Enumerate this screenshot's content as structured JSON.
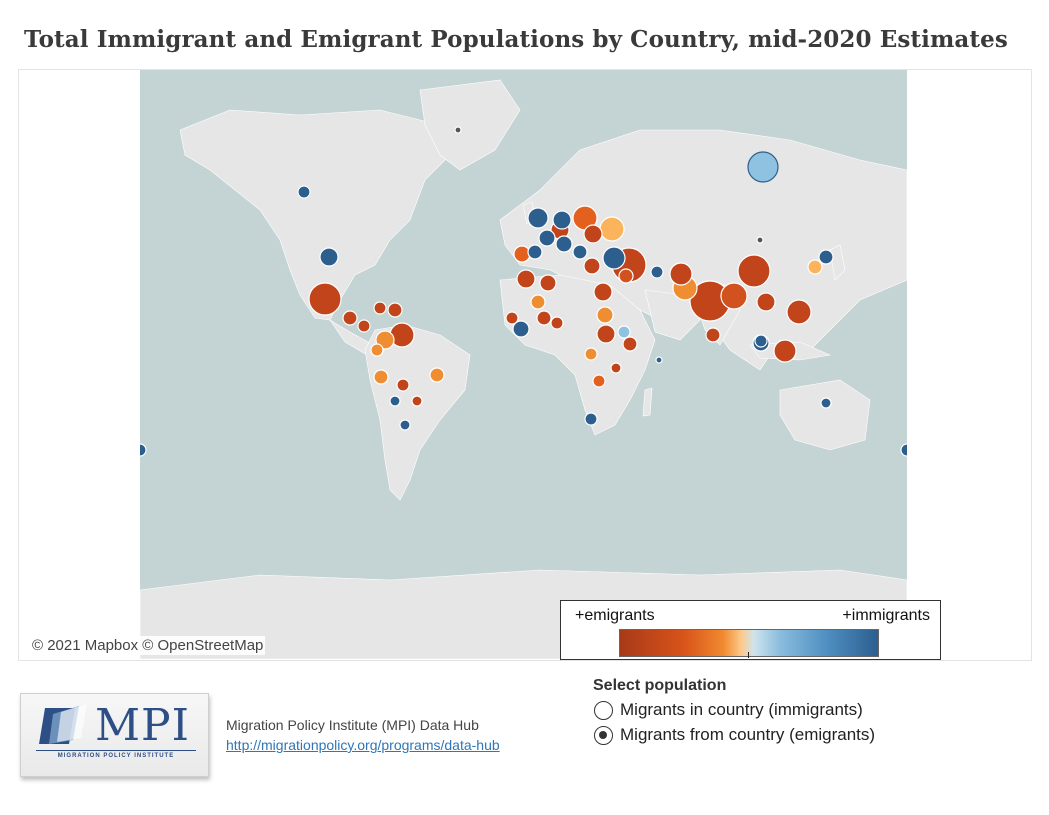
{
  "title": "Total Immigrant and Emigrant Populations by Country, mid-2020 Estimates",
  "map": {
    "attribution": "© 2021 Mapbox © OpenStreetMap",
    "colors": {
      "ocean": "#c4d3d3",
      "land": "#e8e8e8",
      "emigrants": "#c2441a",
      "immigrants": "#2c5f8e"
    }
  },
  "legend": {
    "left_label": "+emigrants",
    "right_label": "+immigrants"
  },
  "source": {
    "name": "Migration Policy Institute (MPI) Data Hub",
    "url": "http://migrationpolicy.org/programs/data-hub"
  },
  "logo": {
    "text": "MPI",
    "subtitle": "MIGRATION POLICY INSTITUTE"
  },
  "selector": {
    "title": "Select population",
    "options": [
      {
        "label": "Migrants in country (immigrants)",
        "selected": false
      },
      {
        "label": "Migrants from country (emigrants)",
        "selected": true
      }
    ]
  }
}
